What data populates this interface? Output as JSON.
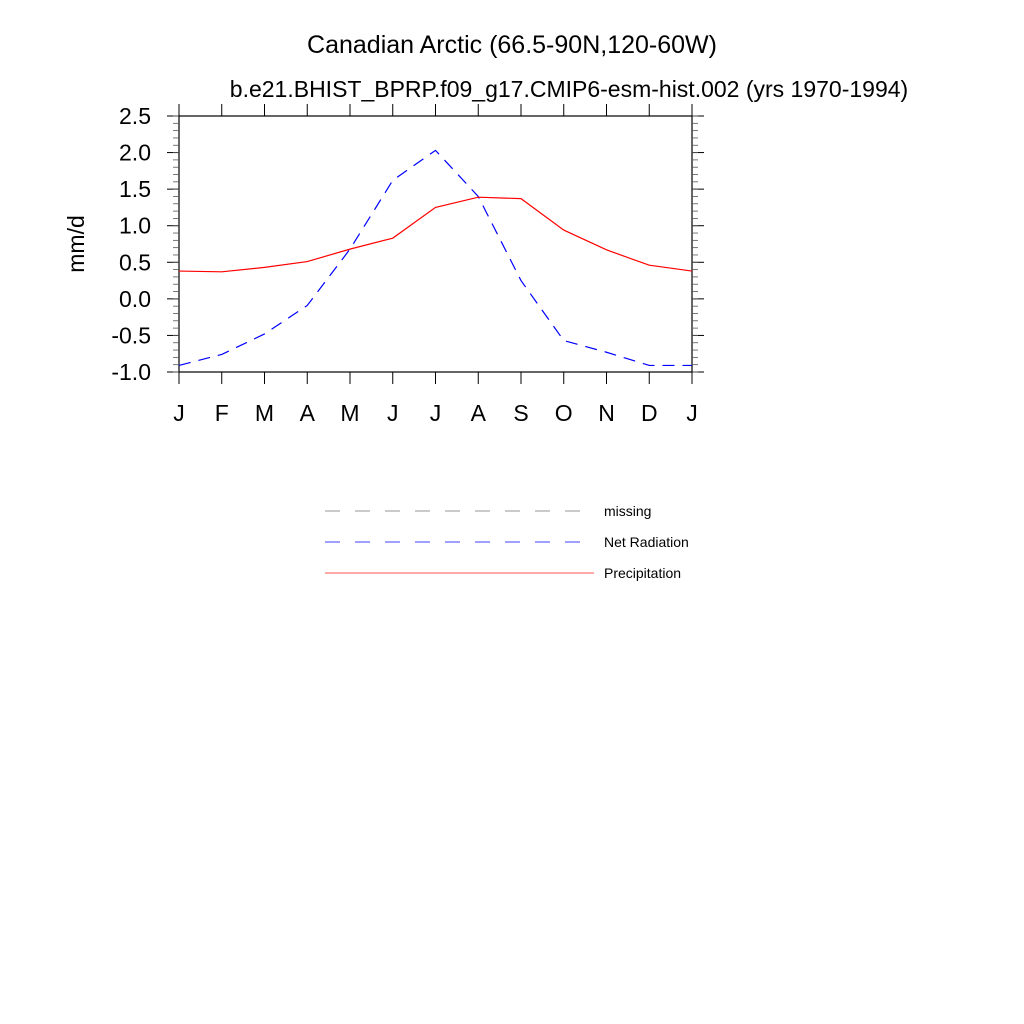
{
  "chart_data": {
    "type": "line",
    "title": "Canadian Arctic (66.5-90N,120-60W)",
    "subtitle": "b.e21.BHIST_BPRP.f09_g17.CMIP6-esm-hist.002 (yrs 1970-1994)",
    "xlabel": "",
    "ylabel": "mm/d",
    "categories": [
      "J",
      "F",
      "M",
      "A",
      "M",
      "J",
      "J",
      "A",
      "S",
      "O",
      "N",
      "D",
      "J"
    ],
    "ylim": [
      -1.0,
      2.5
    ],
    "yticks": [
      "2.5",
      "2.0",
      "1.5",
      "1.0",
      "0.5",
      "0.0",
      "-0.5",
      "-1.0"
    ],
    "ytick_values": [
      2.5,
      2.0,
      1.5,
      1.0,
      0.5,
      0.0,
      -0.5,
      -1.0
    ],
    "grid": false,
    "legend_position": "bottom-center",
    "series": [
      {
        "name": "Net Radiation",
        "color": "#0000ff",
        "dash": true,
        "values": [
          -0.91,
          -0.76,
          -0.48,
          -0.09,
          0.68,
          1.62,
          2.03,
          1.4,
          0.25,
          -0.57,
          -0.73,
          -0.91,
          -0.91
        ]
      },
      {
        "name": "Precipitation",
        "color": "#ff0000",
        "dash": false,
        "values": [
          0.38,
          0.37,
          0.43,
          0.51,
          0.68,
          0.83,
          1.25,
          1.39,
          1.37,
          0.94,
          0.67,
          0.46,
          0.38
        ]
      }
    ],
    "legend": [
      {
        "label": "missing",
        "color": "#aaaaaa",
        "dash": true
      },
      {
        "label": "Net Radiation",
        "color": "#6666ff",
        "dash": true
      },
      {
        "label": "Precipitation",
        "color": "#ff7777",
        "dash": false
      }
    ]
  }
}
